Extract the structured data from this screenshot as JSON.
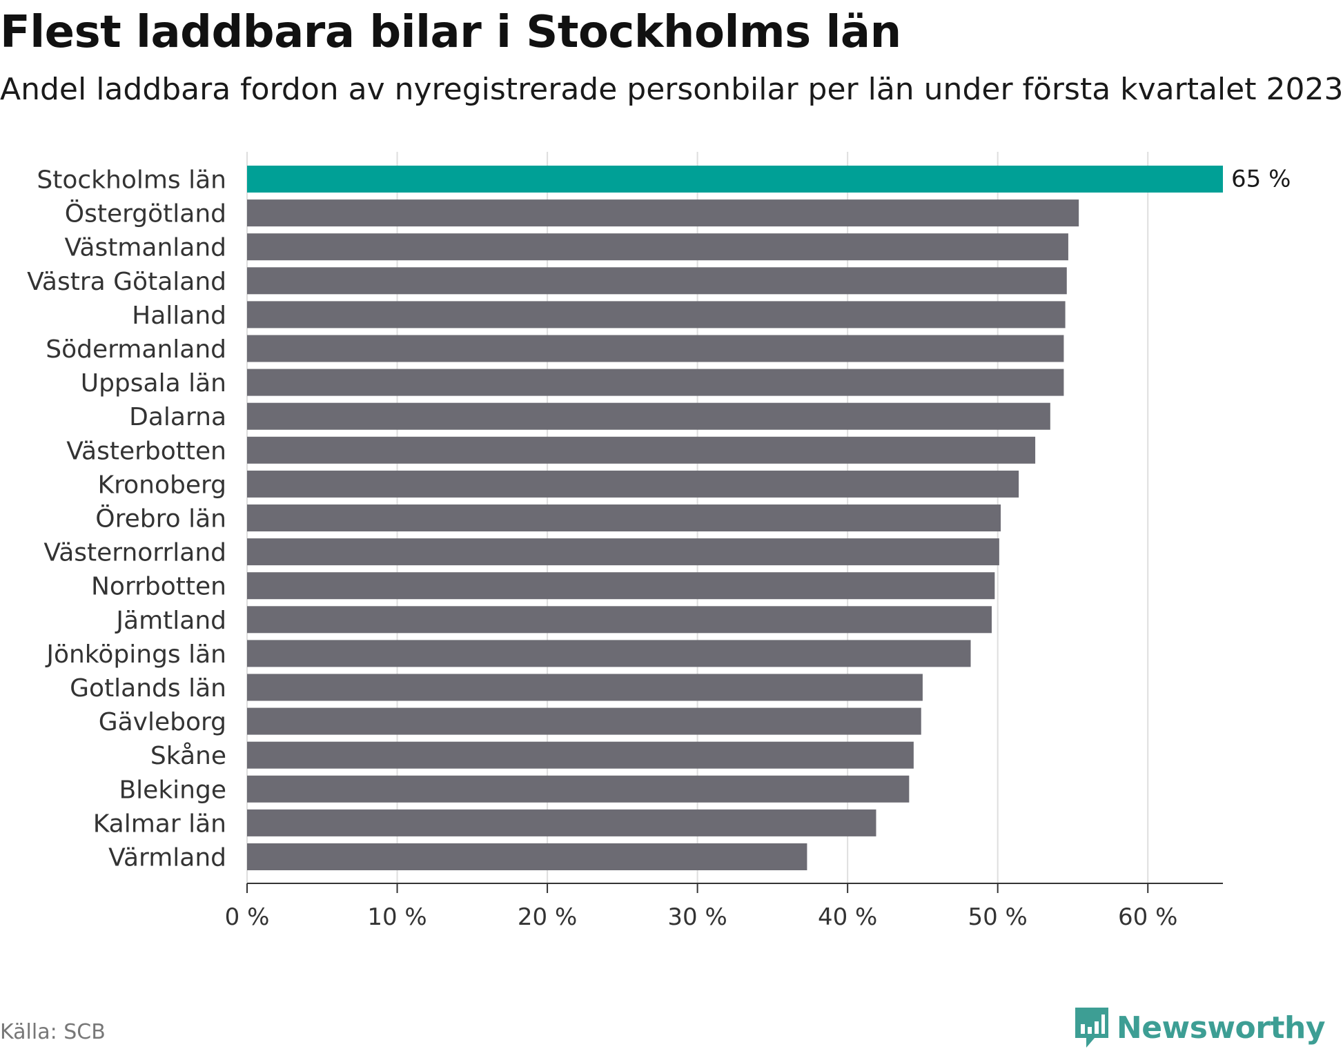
{
  "title": "Flest laddbara bilar i Stockholms län",
  "subtitle": "Andel laddbara fordon av nyregistrerade personbilar per län under första kvartalet 2023",
  "source": "Källa: SCB",
  "brand": {
    "name": "Newsworthy",
    "icon": "newsworthy-logo-icon",
    "color": "#3d9e94"
  },
  "colors": {
    "highlight": "#00a096",
    "bar": "#6c6b73",
    "grid": "#dedede",
    "axis": "#333333"
  },
  "chart_data": {
    "type": "bar",
    "orientation": "horizontal",
    "title": "Flest laddbara bilar i Stockholms län",
    "subtitle": "Andel laddbara fordon av nyregistrerade personbilar per län under första kvartalet 2023",
    "unit": "%",
    "xlim": [
      0,
      65
    ],
    "xticks": [
      0,
      10,
      20,
      30,
      40,
      50,
      60
    ],
    "xtick_labels": [
      "0 %",
      "10 %",
      "20 %",
      "30 %",
      "40 %",
      "50 %",
      "60 %"
    ],
    "grid": true,
    "categories": [
      "Stockholms län",
      "Östergötland",
      "Västmanland",
      "Västra Götaland",
      "Halland",
      "Södermanland",
      "Uppsala län",
      "Dalarna",
      "Västerbotten",
      "Kronoberg",
      "Örebro län",
      "Västernorrland",
      "Norrbotten",
      "Jämtland",
      "Jönköpings län",
      "Gotlands län",
      "Gävleborg",
      "Skåne",
      "Blekinge",
      "Kalmar län",
      "Värmland"
    ],
    "values": [
      65.0,
      55.4,
      54.7,
      54.6,
      54.5,
      54.4,
      54.4,
      53.5,
      52.5,
      51.4,
      50.2,
      50.1,
      49.8,
      49.6,
      48.2,
      45.0,
      44.9,
      44.4,
      44.1,
      41.9,
      37.3
    ],
    "highlight_index": 0,
    "data_labels": [
      "65 %"
    ]
  }
}
